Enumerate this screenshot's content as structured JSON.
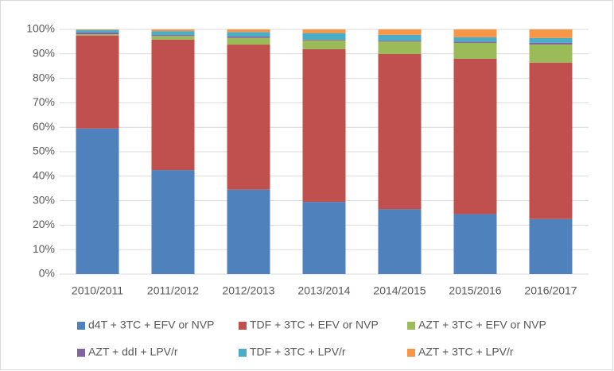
{
  "chart_data": {
    "type": "stacked_bar",
    "categories": [
      "2010/2011",
      "2011/2012",
      "2012/2013",
      "2013/2014",
      "2014/2015",
      "2015/2016",
      "2016/2017"
    ],
    "series": [
      {
        "name": "d4T + 3TC + EFV or NVP",
        "color": "#4f81bd",
        "values": [
          59.5,
          42.5,
          34.5,
          29.5,
          26.5,
          24.5,
          22.5
        ]
      },
      {
        "name": "TDF + 3TC + EFV or NVP",
        "color": "#c0504d",
        "values": [
          38,
          53.3,
          59.3,
          62.4,
          63.5,
          63.5,
          63.9
        ]
      },
      {
        "name": "AZT + 3TC + EFV or NVP",
        "color": "#9bbb59",
        "values": [
          0.5,
          1.5,
          2.7,
          3.6,
          5,
          6.5,
          7.4
        ]
      },
      {
        "name": "AZT + ddI + LPV/r",
        "color": "#8064a2",
        "values": [
          0.8,
          0.4,
          0.6,
          0.3,
          0.4,
          0.5,
          0.7
        ]
      },
      {
        "name": "TDF + 3TC + LPV/r",
        "color": "#4bacc6",
        "values": [
          1,
          1.6,
          1.8,
          2.7,
          2.4,
          1.8,
          2
        ]
      },
      {
        "name": "AZT + 3TC + LPV/r",
        "color": "#f79646",
        "values": [
          0.2,
          0.7,
          1.1,
          1.5,
          2.2,
          3.2,
          3.5
        ]
      }
    ],
    "ylim": [
      0,
      100
    ],
    "yticks": [
      {
        "value": 0,
        "label": "0%"
      },
      {
        "value": 10,
        "label": "10%"
      },
      {
        "value": 20,
        "label": "20%"
      },
      {
        "value": 30,
        "label": "30%"
      },
      {
        "value": 40,
        "label": "40%"
      },
      {
        "value": 50,
        "label": "50%"
      },
      {
        "value": 60,
        "label": "60%"
      },
      {
        "value": 70,
        "label": "70%"
      },
      {
        "value": 80,
        "label": "80%"
      },
      {
        "value": 90,
        "label": "90%"
      },
      {
        "value": 100,
        "label": "100%"
      }
    ],
    "grid": true,
    "legend": "bottom"
  }
}
